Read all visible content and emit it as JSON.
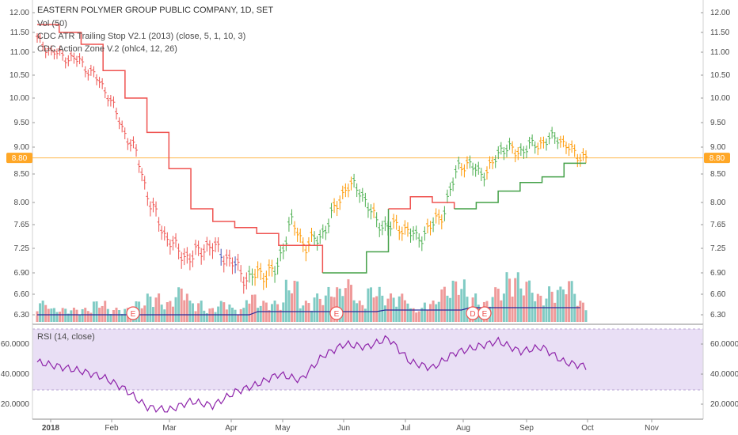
{
  "chart_title": "EASTERN POLYMER GROUP PUBLIC COMPANY, 1D, SET",
  "legend": {
    "vol": "Vol (50)",
    "atr": "CDC ATR Trailing Stop V2.1 (2013) (close, 5, 1, 10, 3)",
    "action": "CDC Action Zone V.2 (ohlc4, 12, 26)",
    "rsi": "RSI (14, close)"
  },
  "price_axis": {
    "ticks": [
      "12.00",
      "11.50",
      "11.00",
      "10.50",
      "10.00",
      "9.50",
      "9.00",
      "8.50",
      "8.00",
      "7.65",
      "7.25",
      "6.90",
      "6.60",
      "6.30"
    ],
    "ticks_right": [
      "12.00",
      "11.50",
      "11.00",
      "10.50",
      "10.00",
      "9.50",
      "9.00",
      "8.50",
      "8.00",
      "7.65",
      "7.25",
      "6.90",
      "6.60",
      "6.30"
    ],
    "last_price_label": "8.80"
  },
  "rsi_axis": {
    "ticks": [
      "60.0000",
      "40.0000",
      "20.0000"
    ]
  },
  "x_axis": {
    "labels": [
      "2018",
      "Feb",
      "Mar",
      "Apr",
      "May",
      "Jun",
      "Jul",
      "Aug",
      "Sep",
      "Oct",
      "Nov"
    ]
  },
  "colors": {
    "up_bar": "#26a69a",
    "green_bar": "#4caf50",
    "orange_bar": "#ff9800",
    "red_bar": "#ef5350",
    "blue_bar": "#3f51b5",
    "stop_red": "#ef5350",
    "stop_green": "#43a047",
    "vol_ma": "#2a2a99",
    "rsi_line": "#8e24aa",
    "rsi_band": "#e9dff5",
    "price_line": "#ffb74d"
  },
  "events": [
    "E",
    "E",
    "D",
    "E"
  ],
  "chart_data": [
    {
      "type": "line",
      "name": "Price (daily bars)",
      "x": [
        "2018-01-02",
        "2018-01-09",
        "2018-01-16",
        "2018-01-23",
        "2018-01-30",
        "2018-02-06",
        "2018-02-13",
        "2018-02-20",
        "2018-02-27",
        "2018-03-06",
        "2018-03-13",
        "2018-03-20",
        "2018-03-27",
        "2018-04-03",
        "2018-04-10",
        "2018-04-17",
        "2018-04-24",
        "2018-05-01",
        "2018-05-08",
        "2018-05-15",
        "2018-05-22",
        "2018-05-29",
        "2018-06-05",
        "2018-06-12",
        "2018-06-19",
        "2018-06-26",
        "2018-07-03",
        "2018-07-10",
        "2018-07-17",
        "2018-07-24",
        "2018-07-31",
        "2018-08-07",
        "2018-08-14",
        "2018-08-21",
        "2018-08-28",
        "2018-09-04",
        "2018-09-11",
        "2018-09-18",
        "2018-09-25",
        "2018-09-28"
      ],
      "close": [
        11.3,
        11.0,
        10.9,
        10.8,
        10.5,
        10.1,
        9.4,
        8.9,
        8.0,
        7.5,
        7.2,
        7.1,
        7.3,
        7.2,
        7.0,
        6.8,
        6.9,
        6.9,
        7.7,
        7.3,
        7.4,
        7.8,
        8.3,
        8.2,
        7.7,
        7.6,
        7.6,
        7.4,
        7.6,
        7.9,
        8.7,
        8.6,
        8.5,
        9.0,
        8.9,
        9.0,
        9.1,
        9.2,
        8.9,
        8.8
      ],
      "ylim": [
        6.2,
        12.1
      ]
    },
    {
      "type": "line",
      "name": "ATR Trailing Stop",
      "x": [
        "2018-01-02",
        "2018-01-16",
        "2018-01-30",
        "2018-02-06",
        "2018-02-13",
        "2018-02-20",
        "2018-02-27",
        "2018-03-06",
        "2018-03-13",
        "2018-03-27",
        "2018-04-03",
        "2018-04-17",
        "2018-05-01",
        "2018-05-08",
        "2018-05-22",
        "2018-06-05",
        "2018-06-12",
        "2018-06-26",
        "2018-07-03",
        "2018-07-17",
        "2018-07-31",
        "2018-08-14",
        "2018-08-28",
        "2018-09-11",
        "2018-09-25",
        "2018-09-28"
      ],
      "values": [
        11.7,
        11.5,
        11.2,
        10.6,
        10.0,
        9.3,
        8.6,
        7.9,
        7.7,
        7.6,
        7.5,
        7.3,
        7.3,
        6.9,
        6.9,
        7.2,
        7.9,
        8.1,
        8.0,
        7.9,
        8.0,
        8.2,
        8.35,
        8.45,
        8.7,
        8.7
      ]
    },
    {
      "type": "bar",
      "name": "Vol (50)",
      "note": "volume shown in lower portion of price pane; values relative",
      "values": [
        3,
        2,
        2,
        2,
        3,
        2,
        2,
        3,
        4,
        3,
        5,
        3,
        2,
        3,
        2,
        4,
        3,
        3,
        6,
        3,
        4,
        5,
        6,
        3,
        5,
        4,
        4,
        2,
        3,
        5,
        6,
        4,
        3,
        5,
        7,
        6,
        4,
        5,
        6,
        3
      ]
    },
    {
      "type": "line",
      "name": "RSI (14, close)",
      "x": [
        "2018-01-02",
        "2018-01-16",
        "2018-01-30",
        "2018-02-06",
        "2018-02-13",
        "2018-02-20",
        "2018-02-27",
        "2018-03-06",
        "2018-03-13",
        "2018-03-27",
        "2018-04-03",
        "2018-04-17",
        "2018-05-01",
        "2018-05-08",
        "2018-05-22",
        "2018-06-05",
        "2018-06-12",
        "2018-06-26",
        "2018-07-03",
        "2018-07-17",
        "2018-07-31",
        "2018-08-14",
        "2018-08-28",
        "2018-09-11",
        "2018-09-25",
        "2018-09-28"
      ],
      "values": [
        48,
        45,
        42,
        38,
        30,
        18,
        16,
        22,
        19,
        28,
        33,
        40,
        36,
        52,
        60,
        58,
        64,
        48,
        44,
        54,
        58,
        62,
        55,
        58,
        48,
        45
      ],
      "ylim": [
        15,
        70
      ],
      "band": [
        30,
        70
      ]
    }
  ]
}
